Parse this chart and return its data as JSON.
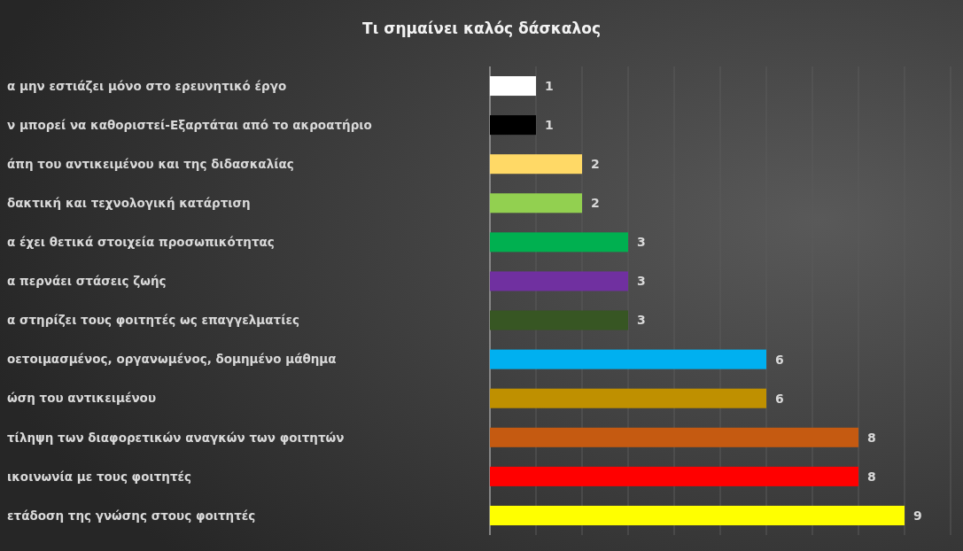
{
  "chart_data": {
    "type": "bar",
    "orientation": "horizontal",
    "title": "Τι σημαίνει καλός δάσκαλος",
    "categories": [
      "α μην εστιάζει μόνο στο ερευνητικό έργο",
      "ν μπορεί να καθοριστεί-Εξαρτάται από το ακροατήριο",
      "άπη του αντικειμένου και της διδασκαλίας",
      "δακτική και τεχνολογική κατάρτιση",
      "α έχει θετικά στοιχεία προσωπικότητας",
      "α περνάει στάσεις ζωής",
      "α στηρίζει τους φοιτητές ως επαγγελματίες",
      "οετοιμασμένος, οργανωμένος, δομημένο μάθημα",
      "ώση του αντικειμένου",
      "τίληψη των διαφορετικών αναγκών των φοιτητών",
      "ικοινωνία με τους φοιτητές",
      "ετάδοση της γνώσης στους φοιτητές"
    ],
    "values": [
      1,
      1,
      2,
      2,
      3,
      3,
      3,
      6,
      6,
      8,
      8,
      9
    ],
    "colors": [
      "#ffffff",
      "#000000",
      "#ffd966",
      "#92d050",
      "#00b050",
      "#7030a0",
      "#375623",
      "#00b0f0",
      "#bf9000",
      "#c55a11",
      "#ff0000",
      "#ffff00"
    ],
    "xlim": [
      0,
      10
    ],
    "xticks": [
      {
        "value": 0,
        "label": null
      },
      {
        "value": 1,
        "label": null
      },
      {
        "value": 2,
        "label": null
      },
      {
        "value": 3,
        "label": null
      },
      {
        "value": 4,
        "label": null
      },
      {
        "value": 5,
        "label": null
      },
      {
        "value": 6,
        "label": null
      },
      {
        "value": 7,
        "label": null
      },
      {
        "value": 8,
        "label": null
      },
      {
        "value": 9,
        "label": null
      },
      {
        "value": 10,
        "label": null
      }
    ],
    "grid": "x",
    "tick_labels": "y",
    "data_labels": true
  }
}
